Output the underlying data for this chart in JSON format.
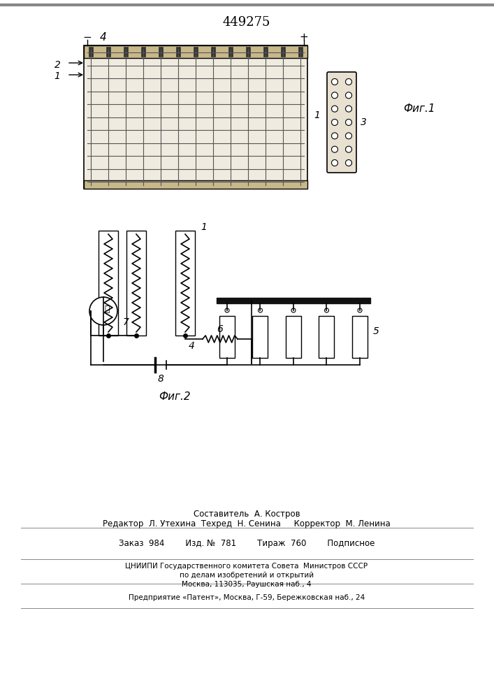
{
  "title": "449275",
  "fig1_label": "Фиг.1",
  "fig2_label": "Фиг.2",
  "background_color": "#ffffff",
  "line_color": "#000000",
  "grid_fill": "#d4c8a8",
  "footer_line1": "Составитель  А. Костров",
  "footer_line2": "Редактор  Л. Утехина  Техред  Н. Сенина     Корректор  М. Ленина",
  "footer_line3": "Заказ  984        Изд. №  781        Тираж  760        Подписное",
  "footer_line4": "ЦНИИПИ Государственного комитета Совета  Министров СССР",
  "footer_line5": "по делам изобретений и открытий",
  "footer_line6": "Москва, 113035, Раушская наб., 4",
  "footer_line7": "Предприятие «Патент», Москва, Г-59, Бережковская наб., 24"
}
